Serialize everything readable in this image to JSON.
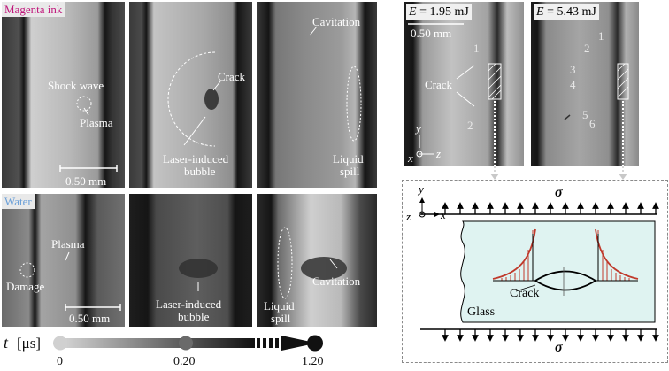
{
  "colors": {
    "magenta_tag": "#c0177b",
    "water_tag": "#6a9fd8",
    "glass_fill": "#dff3f1",
    "stress_red": "#c0392b"
  },
  "rows": {
    "magenta": {
      "tag": "Magenta ink",
      "p1": {
        "shock_wave": "Shock wave",
        "plasma": "Plasma",
        "scale": "0.50 mm"
      },
      "p2": {
        "crack": "Crack",
        "bubble_line1": "Laser-induced",
        "bubble_line2": "bubble"
      },
      "p3": {
        "cavitation": "Cavitation",
        "spill_line1": "Liquid",
        "spill_line2": "spill"
      }
    },
    "water": {
      "tag": "Water",
      "p1": {
        "plasma": "Plasma",
        "damage": "Damage",
        "scale": "0.50 mm"
      },
      "p2": {
        "bubble_line1": "Laser-induced",
        "bubble_line2": "bubble"
      },
      "p3": {
        "spill_line1": "Liquid",
        "spill_line2": "spill",
        "cavitation": "Cavitation"
      }
    }
  },
  "timeline": {
    "label_t": "t",
    "label_unit": "[μs]",
    "ticks": [
      "0",
      "0.20",
      "1.20"
    ]
  },
  "right": {
    "p_left": {
      "energy_label": "E",
      "energy_value": "= 1.95 mJ",
      "scale": "0.50 mm",
      "crack": "Crack",
      "numbers": [
        "1",
        "2"
      ],
      "axis_y": "y",
      "axis_x": "x",
      "axis_z": "z"
    },
    "p_right": {
      "energy_label": "E",
      "energy_value": "= 5.43 mJ",
      "numbers": [
        "1",
        "2",
        "3",
        "4",
        "5",
        "6"
      ]
    },
    "schematic": {
      "sigma_top": "σ",
      "sigma_bottom": "σ",
      "crack": "Crack",
      "glass": "Glass",
      "axis_y": "y",
      "axis_z": "z",
      "axis_x": "x"
    }
  }
}
